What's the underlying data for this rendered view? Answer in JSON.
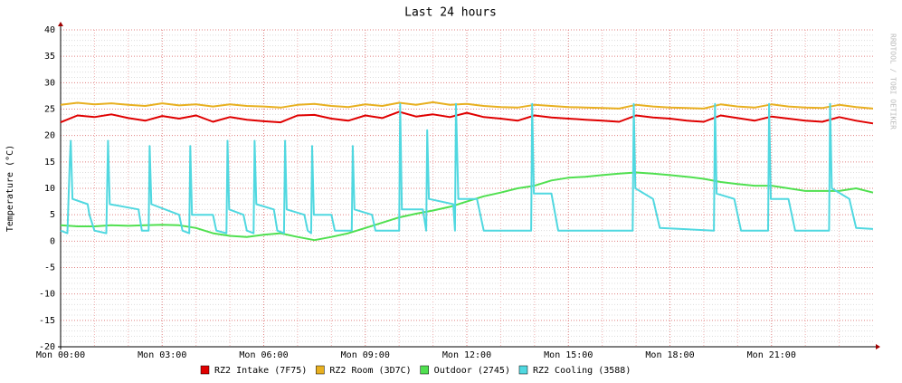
{
  "chart_data": {
    "type": "line",
    "title": "Last 24 hours",
    "y_label": "Temperature (°C)",
    "watermark": "RRDTOOL / TOBI OETIKER",
    "xlim": [
      0,
      24
    ],
    "ylim": [
      -20,
      40
    ],
    "xticks": [
      {
        "value": 0,
        "label": "Mon 00:00"
      },
      {
        "value": 3,
        "label": "Mon 03:00"
      },
      {
        "value": 6,
        "label": "Mon 06:00"
      },
      {
        "value": 9,
        "label": "Mon 09:00"
      },
      {
        "value": 12,
        "label": "Mon 12:00"
      },
      {
        "value": 15,
        "label": "Mon 15:00"
      },
      {
        "value": 18,
        "label": "Mon 18:00"
      },
      {
        "value": 21,
        "label": "Mon 21:00"
      }
    ],
    "yticks": [
      -20,
      -15,
      -10,
      -5,
      0,
      5,
      10,
      15,
      20,
      25,
      30,
      35,
      40
    ],
    "grid": true,
    "x": [
      0,
      0.5,
      1,
      1.5,
      2,
      2.5,
      3,
      3.5,
      4,
      4.5,
      5,
      5.5,
      6,
      6.5,
      7,
      7.5,
      8,
      8.5,
      9,
      9.5,
      10,
      10.5,
      11,
      11.5,
      12,
      12.5,
      13,
      13.5,
      14,
      14.5,
      15,
      15.5,
      16,
      16.5,
      17,
      17.5,
      18,
      18.5,
      19,
      19.5,
      20,
      20.5,
      21,
      21.5,
      22,
      22.5,
      23,
      23.5,
      24
    ],
    "series": [
      {
        "name": "RZ2 Intake (7F75)",
        "color": "#e00000",
        "values": [
          22.5,
          23.8,
          23.5,
          24,
          23.3,
          22.8,
          23.7,
          23.2,
          23.8,
          22.6,
          23.5,
          23,
          22.7,
          22.5,
          23.8,
          23.9,
          23.2,
          22.8,
          23.8,
          23.3,
          24.5,
          23.6,
          24,
          23.5,
          24.3,
          23.5,
          23.2,
          22.8,
          23.8,
          23.4,
          23.2,
          23,
          22.8,
          22.6,
          23.8,
          23.4,
          23.2,
          22.8,
          22.6,
          23.8,
          23.3,
          22.8,
          23.6,
          23.2,
          22.8,
          22.6,
          23.5,
          22.8,
          22.3
        ]
      },
      {
        "name": "RZ2 Room (3D7C)",
        "color": "#e8b020",
        "values": [
          25.8,
          26.2,
          25.9,
          26.1,
          25.8,
          25.6,
          26.1,
          25.7,
          25.9,
          25.5,
          25.9,
          25.6,
          25.5,
          25.3,
          25.8,
          26,
          25.6,
          25.4,
          25.9,
          25.6,
          26.2,
          25.8,
          26.3,
          25.8,
          26,
          25.6,
          25.4,
          25.3,
          25.8,
          25.6,
          25.4,
          25.3,
          25.2,
          25.1,
          25.8,
          25.5,
          25.3,
          25.2,
          25.1,
          25.9,
          25.5,
          25.3,
          25.9,
          25.5,
          25.3,
          25.2,
          25.8,
          25.4,
          25.1
        ]
      },
      {
        "name": "Outdoor (2745)",
        "color": "#50e050",
        "values": [
          3,
          2.8,
          2.8,
          3,
          2.9,
          3,
          3.1,
          3,
          2.5,
          1.5,
          1,
          0.8,
          1.2,
          1.5,
          0.8,
          0.2,
          0.8,
          1.5,
          2.5,
          3.5,
          4.5,
          5.2,
          5.8,
          6.5,
          7.5,
          8.5,
          9.2,
          10,
          10.5,
          11.5,
          12,
          12.2,
          12.5,
          12.8,
          13,
          12.8,
          12.5,
          12.2,
          11.8,
          11.2,
          10.8,
          10.5,
          10.5,
          10,
          9.5,
          9.5,
          9.5,
          10,
          9.2
        ]
      },
      {
        "name": "RZ2 Cooling (3588)",
        "color": "#50d8e0",
        "x": [
          0,
          0.2,
          0.27,
          0.3,
          0.35,
          0.8,
          0.85,
          1.0,
          1.35,
          1.4,
          1.45,
          2.3,
          2.4,
          2.6,
          2.63,
          2.68,
          3.5,
          3.6,
          3.8,
          3.83,
          3.88,
          4.5,
          4.6,
          4.9,
          4.93,
          4.98,
          5.4,
          5.5,
          5.7,
          5.73,
          5.78,
          6.3,
          6.4,
          6.6,
          6.63,
          6.68,
          7.2,
          7.3,
          7.4,
          7.43,
          7.48,
          8.0,
          8.1,
          8.6,
          8.63,
          8.68,
          9.2,
          9.3,
          10.0,
          10.03,
          10.08,
          10.7,
          10.8,
          10.83,
          10.88,
          11.6,
          11.65,
          11.68,
          11.75,
          12.3,
          12.5,
          13.9,
          13.93,
          13.98,
          14.5,
          14.7,
          16.9,
          16.93,
          16.98,
          17.5,
          17.7,
          19.3,
          19.33,
          19.38,
          19.9,
          20.1,
          20.9,
          20.93,
          20.98,
          21.5,
          21.7,
          22.7,
          22.73,
          22.78,
          23.3,
          23.5,
          24
        ],
        "values": [
          2,
          1.5,
          15,
          19,
          8,
          7,
          5,
          2,
          1.5,
          19,
          7,
          6,
          2,
          2,
          18,
          7,
          5,
          2,
          1.5,
          18,
          5,
          5,
          2,
          1.5,
          19,
          6,
          5,
          2,
          1.5,
          19,
          7,
          6,
          2,
          1.5,
          19,
          6,
          5,
          2,
          1.5,
          18,
          5,
          5,
          2,
          2,
          18,
          6,
          5,
          2,
          2,
          26,
          6,
          6,
          2,
          21,
          8,
          7,
          2,
          26,
          8,
          8,
          2,
          2,
          26,
          9,
          9,
          2,
          2,
          26,
          10,
          8,
          2.5,
          2,
          26,
          9,
          8,
          2,
          2,
          26,
          8,
          8,
          2,
          2,
          26,
          10,
          8,
          2.5,
          2.3
        ]
      }
    ]
  }
}
